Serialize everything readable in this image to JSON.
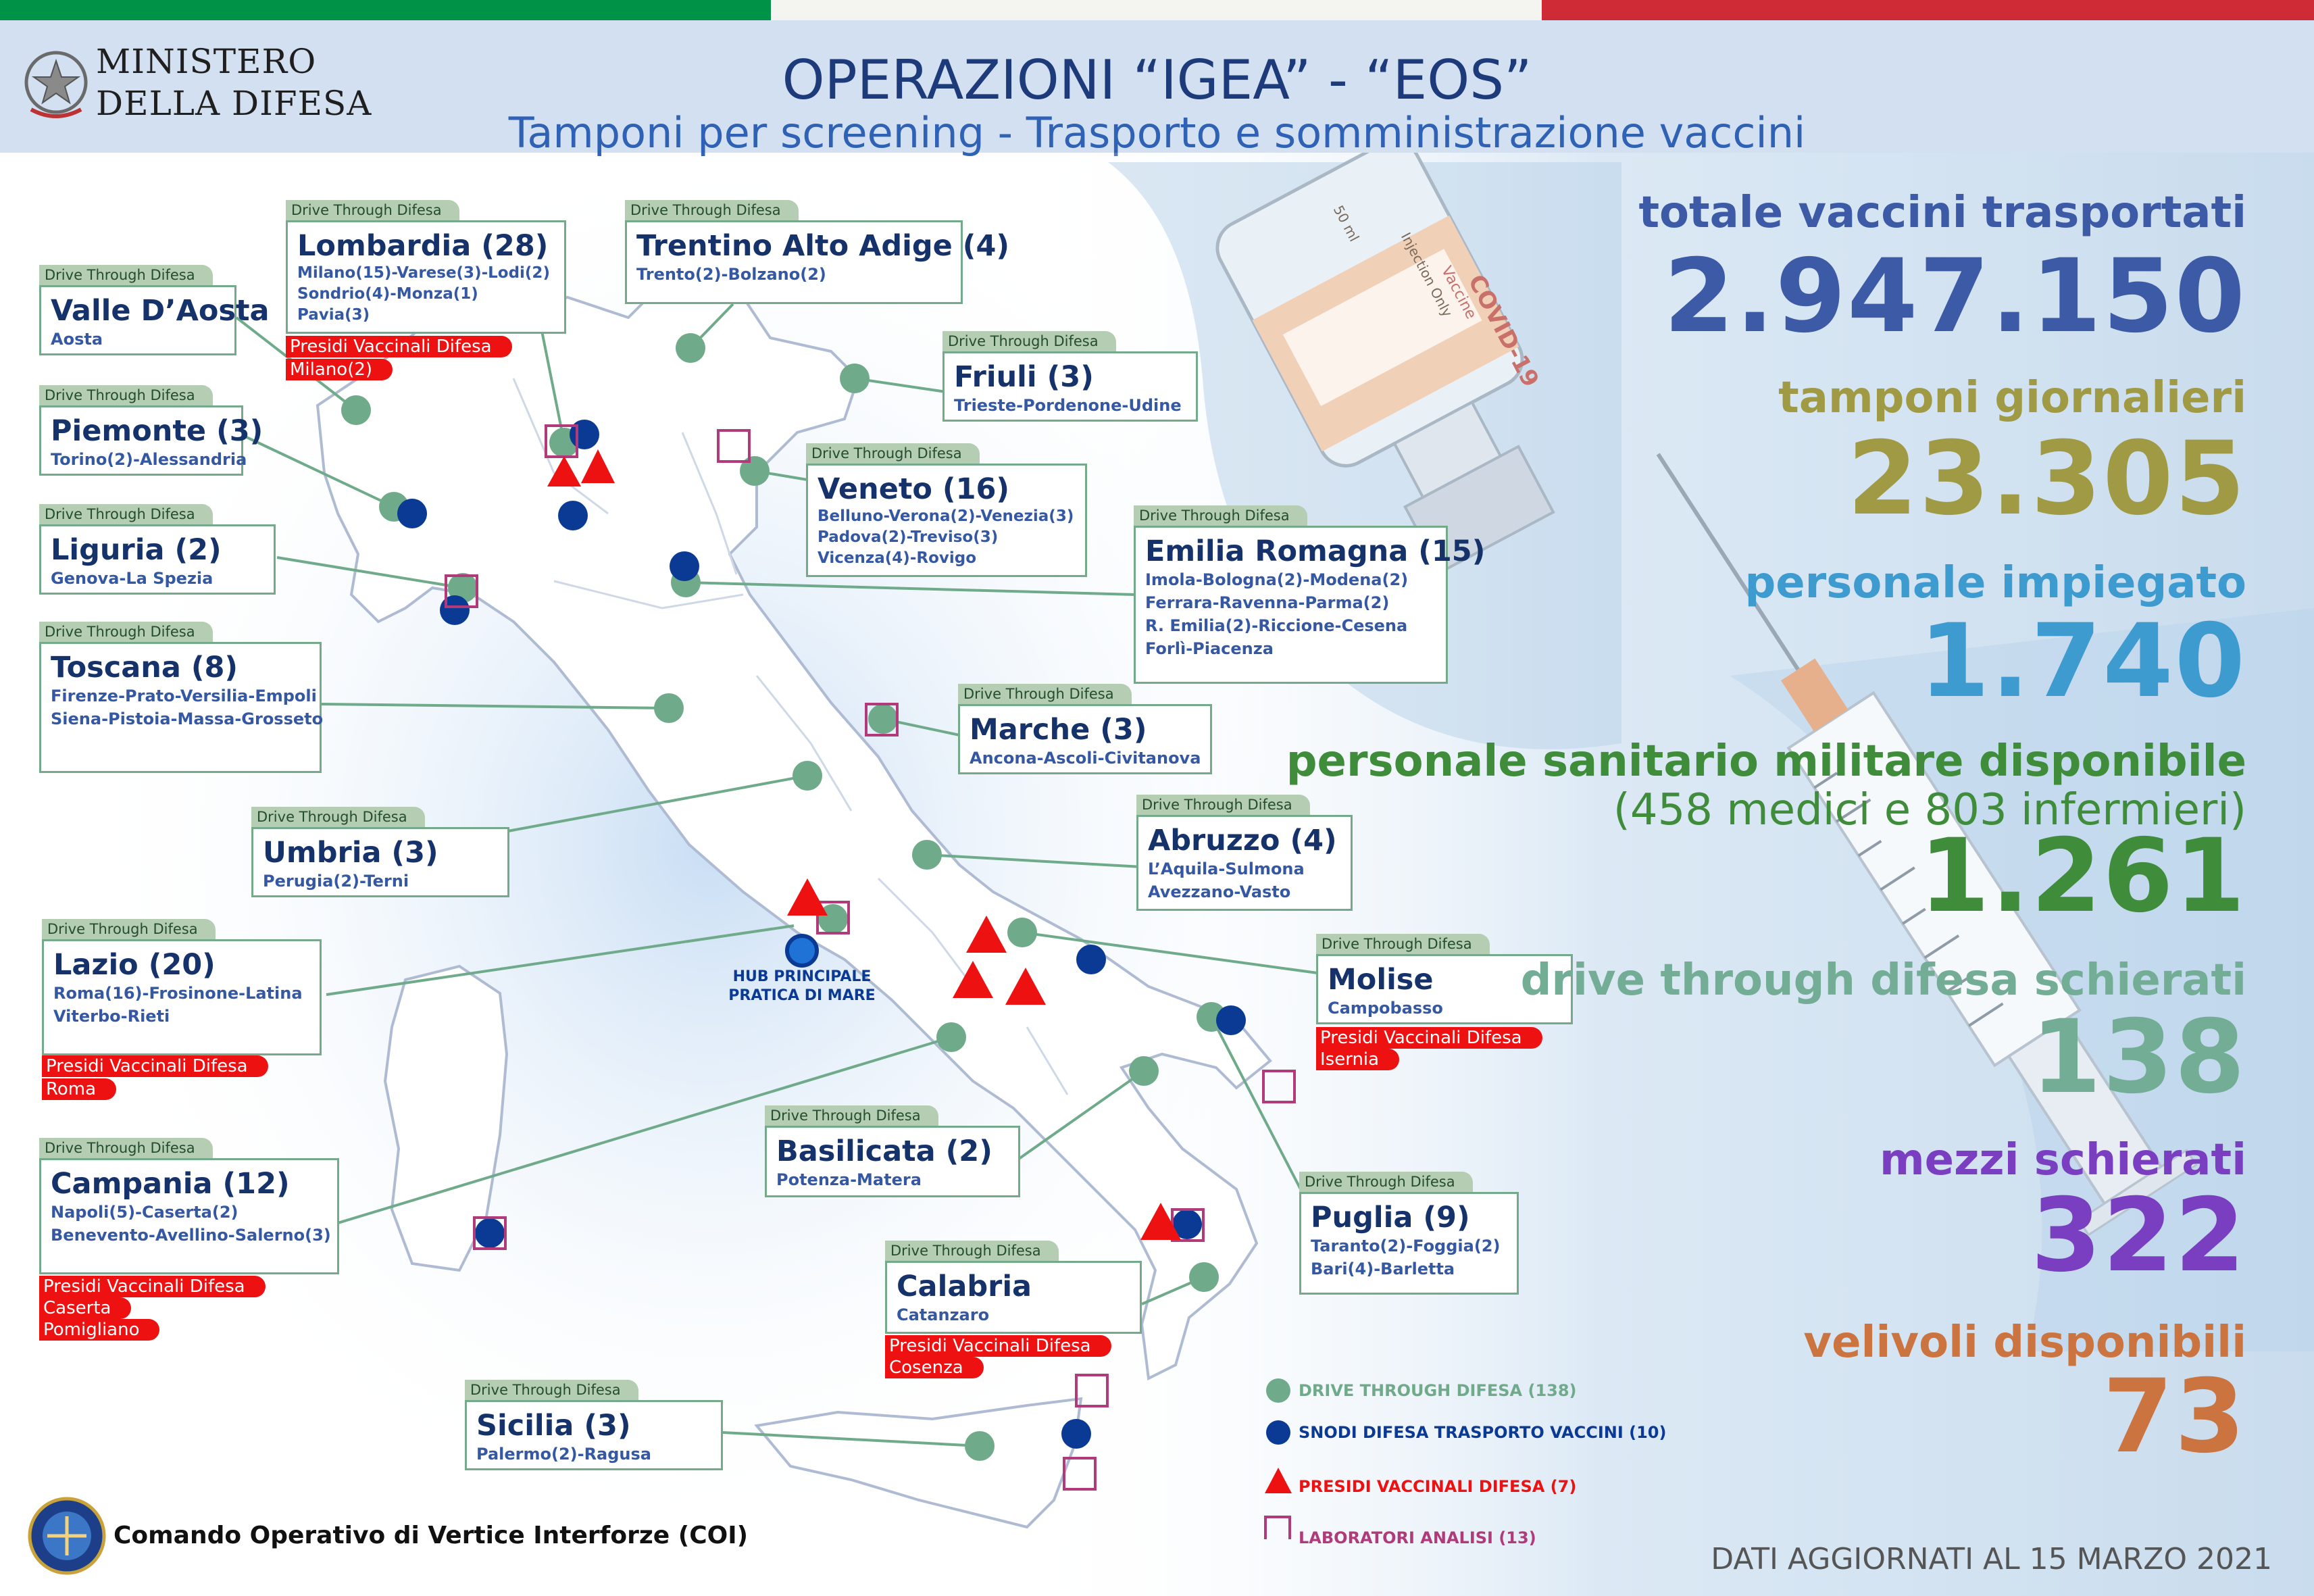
{
  "colors": {
    "flag_green": "#009246",
    "flag_white": "#f4f5f0",
    "flag_red": "#ce2b37",
    "dot_green": "#6fab8a",
    "dot_blue": "#0b3a94",
    "triangle_red": "#ee1111",
    "lab_purple": "#b13a7a"
  },
  "header": {
    "ministry_line1": "MINISTERO",
    "ministry_line2": "DELLA DIFESA",
    "title": "OPERAZIONI “IGEA” - “EOS”",
    "subtitle": "Tamponi per screening - Trasporto e somministrazione vaccini"
  },
  "vial": {
    "volume": "50 ml",
    "inj": "Injection Only",
    "name": "COVID-19",
    "kind": "Vaccine"
  },
  "drive_tag": "Drive Through Difesa",
  "regions": {
    "lombardia": {
      "name": "Lombardia (28)",
      "cities": [
        "Milano(15)-Varese(3)-Lodi(2)",
        "Sondrio(4)-Monza(1)",
        "Pavia(3)"
      ],
      "presidi": [
        "Presidi Vaccinali Difesa",
        "Milano(2)"
      ]
    },
    "trentino": {
      "name": "Trentino Alto Adige (4)",
      "cities": [
        "Trento(2)-Bolzano(2)"
      ]
    },
    "valle": {
      "name": "Valle D’Aosta",
      "cities": [
        "Aosta"
      ]
    },
    "friuli": {
      "name": "Friuli (3)",
      "cities": [
        "Trieste-Pordenone-Udine"
      ]
    },
    "piemonte": {
      "name": "Piemonte (3)",
      "cities": [
        "Torino(2)-Alessandria"
      ]
    },
    "veneto": {
      "name": "Veneto (16)",
      "cities": [
        "Belluno-Verona(2)-Venezia(3)",
        "Padova(2)-Treviso(3)",
        "Vicenza(4)-Rovigo"
      ]
    },
    "liguria": {
      "name": "Liguria (2)",
      "cities": [
        "Genova-La Spezia"
      ]
    },
    "emilia": {
      "name": "Emilia Romagna (15)",
      "cities": [
        "Imola-Bologna(2)-Modena(2)",
        "Ferrara-Ravenna-Parma(2)",
        "R. Emilia(2)-Riccione-Cesena",
        "Forlì-Piacenza"
      ]
    },
    "toscana": {
      "name": "Toscana (8)",
      "cities": [
        "Firenze-Prato-Versilia-Empoli",
        "Siena-Pistoia-Massa-Grosseto"
      ]
    },
    "marche": {
      "name": "Marche (3)",
      "cities": [
        "Ancona-Ascoli-Civitanova"
      ]
    },
    "umbria": {
      "name": "Umbria (3)",
      "cities": [
        "Perugia(2)-Terni"
      ]
    },
    "abruzzo": {
      "name": "Abruzzo (4)",
      "cities": [
        "L’Aquila-Sulmona",
        "Avezzano-Vasto"
      ]
    },
    "lazio": {
      "name": "Lazio (20)",
      "cities": [
        "Roma(16)-Frosinone-Latina",
        "Viterbo-Rieti"
      ],
      "presidi": [
        "Presidi Vaccinali Difesa",
        "Roma"
      ]
    },
    "molise": {
      "name": "Molise",
      "cities": [
        "Campobasso"
      ],
      "presidi": [
        "Presidi Vaccinali Difesa",
        "Isernia"
      ]
    },
    "campania": {
      "name": "Campania (12)",
      "cities": [
        "Napoli(5)-Caserta(2)",
        "Benevento-Avellino-Salerno(3)"
      ],
      "presidi": [
        "Presidi Vaccinali Difesa",
        "Caserta",
        "Pomigliano"
      ]
    },
    "basilicata": {
      "name": "Basilicata (2)",
      "cities": [
        "Potenza-Matera"
      ]
    },
    "puglia": {
      "name": "Puglia (9)",
      "cities": [
        "Taranto(2)-Foggia(2)",
        "Bari(4)-Barletta"
      ]
    },
    "calabria": {
      "name": "Calabria",
      "cities": [
        "Catanzaro"
      ],
      "presidi": [
        "Presidi Vaccinali Difesa",
        "Cosenza"
      ]
    },
    "sicilia": {
      "name": "Sicilia (3)",
      "cities": [
        "Palermo(2)-Ragusa"
      ]
    }
  },
  "hub": {
    "line1": "HUB PRINCIPALE",
    "line2": "PRATICA DI MARE"
  },
  "stats": [
    {
      "label": "totale vaccini trasportati",
      "value": "2.947.150",
      "color": "#3c5aa6"
    },
    {
      "label": "tamponi giornalieri",
      "value": "23.305",
      "color": "#a09a45"
    },
    {
      "label": "personale impiegato",
      "value": "1.740",
      "color": "#3e9bcf"
    },
    {
      "label": "personale sanitario militare disponibile",
      "label2": "(458 medici e 803 infermieri)",
      "value": "1.261",
      "color": "#3f8c3b"
    },
    {
      "label": "drive through difesa schierati",
      "value": "138",
      "color": "#73ad96"
    },
    {
      "label": "mezzi schierati",
      "value": "322",
      "color": "#7a3fc0"
    },
    {
      "label": "velivoli disponibili",
      "value": "73",
      "color": "#cc7440"
    }
  ],
  "legend": {
    "drive": "DRIVE THROUGH DIFESA (138)",
    "snodi": "SNODI DIFESA TRASPORTO VACCINI (10)",
    "presidi": "PRESIDI VACCINALI DIFESA (7)",
    "lab": "LABORATORI ANALISI (13)"
  },
  "footer": {
    "coi": "Comando Operativo di Vertice Interforze (COI)",
    "date": "DATI AGGIORNATI AL 15 MARZO 2021"
  }
}
